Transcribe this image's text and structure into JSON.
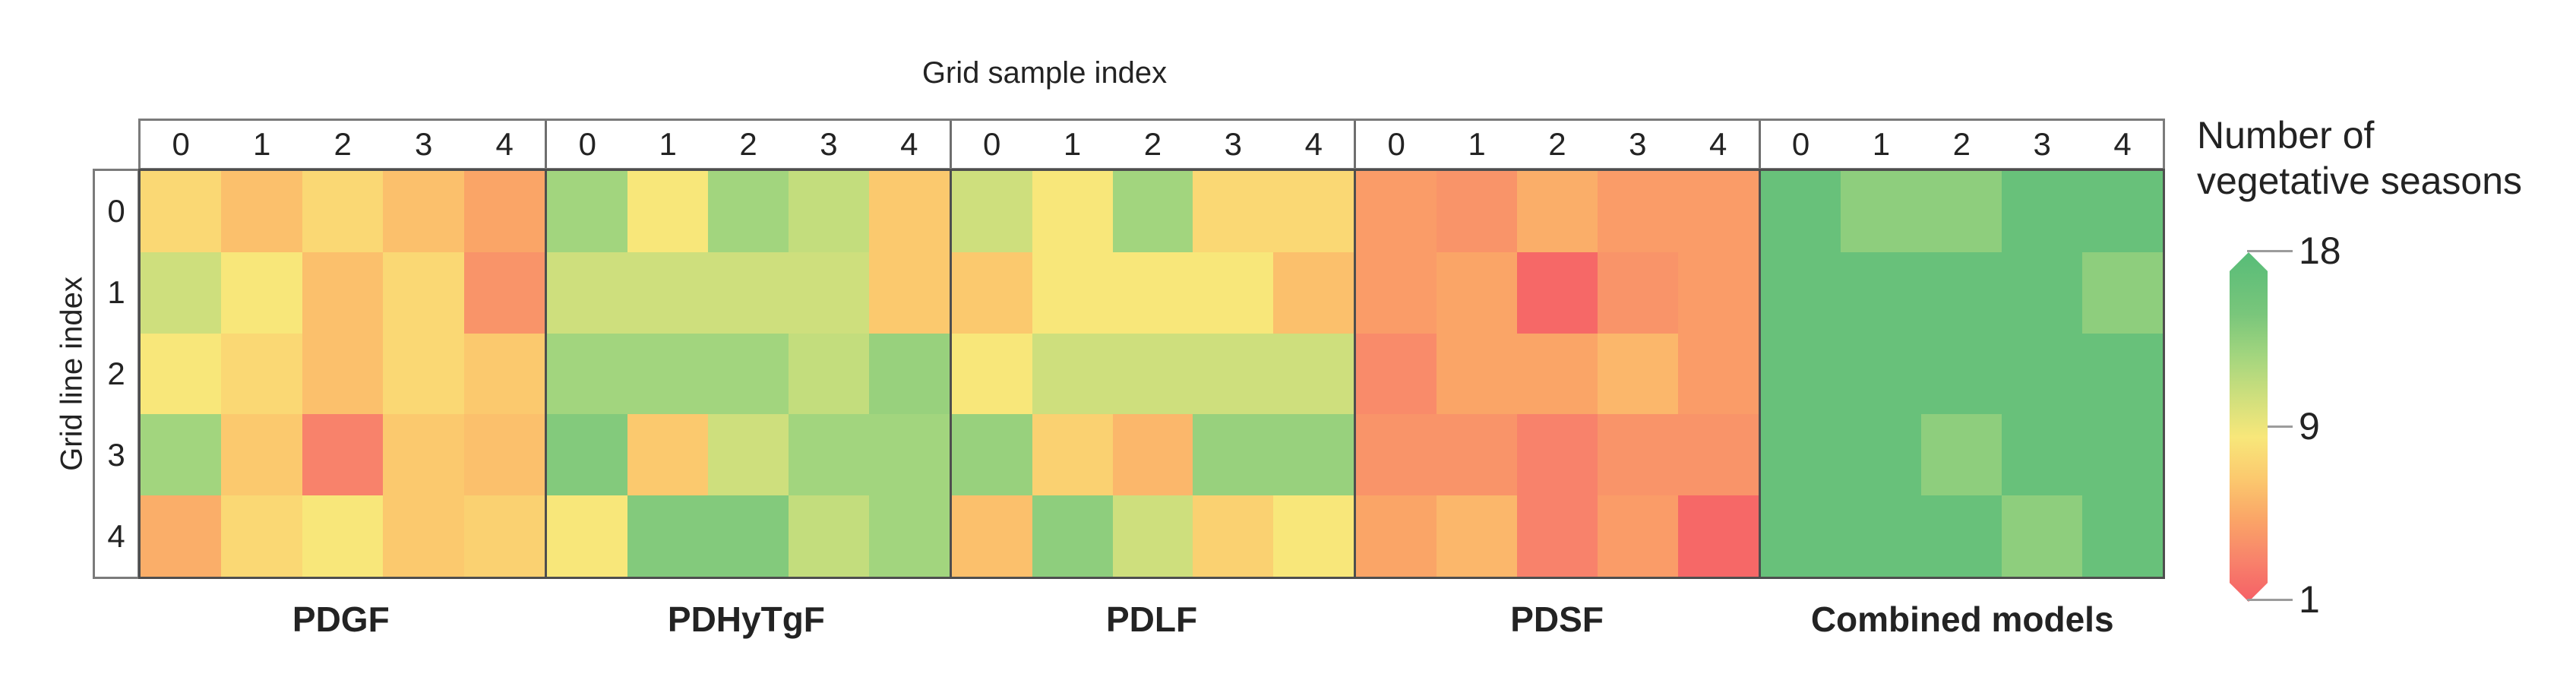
{
  "title": "Grid sample index",
  "y_axis_label": "Grid line index",
  "legend": {
    "title_lines": [
      "Number of",
      "vegetative seasons"
    ],
    "tick_labels": [
      "18",
      "9",
      "1"
    ]
  },
  "colors": {
    "background": "#ffffff",
    "panel_border": "#4e4e4e",
    "strip_border": "#7b7b7b",
    "tick_line": "#9c9c9c",
    "text": "#232323"
  },
  "chart_data": {
    "type": "heatmap",
    "title": "Grid sample index",
    "xlabel": "Grid sample index",
    "ylabel": "Grid line index",
    "value_label": "Number of vegetative seasons",
    "col_labels": [
      "0",
      "1",
      "2",
      "3",
      "4"
    ],
    "row_labels": [
      "0",
      "1",
      "2",
      "3",
      "4"
    ],
    "vmin": 1,
    "vmax": 18,
    "legend_ticks": [
      18,
      9,
      1
    ],
    "legend_position": "right",
    "colormap": {
      "anchors": [
        [
          1,
          "#f55f66"
        ],
        [
          3,
          "#f8826b"
        ],
        [
          5,
          "#faa567"
        ],
        [
          7,
          "#fbc96e"
        ],
        [
          9,
          "#f8e77a"
        ],
        [
          11,
          "#cedf7d"
        ],
        [
          13,
          "#a2d57e"
        ],
        [
          15,
          "#79c67b"
        ],
        [
          18,
          "#57bc78"
        ]
      ]
    },
    "panels": [
      {
        "name": "PDGF",
        "values": [
          [
            8,
            6.5,
            8,
            6.5,
            5
          ],
          [
            11,
            9,
            6.5,
            8,
            4
          ],
          [
            9,
            8,
            6.5,
            8,
            7
          ],
          [
            13,
            7,
            3,
            7,
            6.5
          ],
          [
            5.5,
            8,
            9,
            7,
            7.5
          ]
        ]
      },
      {
        "name": "PDHyTgF",
        "values": [
          [
            13,
            9,
            13,
            11.5,
            7
          ],
          [
            11,
            11,
            11,
            11,
            7
          ],
          [
            13,
            13,
            13,
            11.5,
            13.5
          ],
          [
            14.5,
            7,
            11,
            13,
            13
          ],
          [
            9,
            14.5,
            14.5,
            11.5,
            13
          ]
        ]
      },
      {
        "name": "PDLF",
        "values": [
          [
            11,
            9,
            13,
            8,
            8
          ],
          [
            7,
            9,
            9,
            9,
            6.5
          ],
          [
            9,
            11,
            11,
            11,
            11
          ],
          [
            13.5,
            7.5,
            6,
            13.5,
            13.5
          ],
          [
            6.5,
            14,
            11,
            7.5,
            9
          ]
        ]
      },
      {
        "name": "PDSF",
        "values": [
          [
            4.5,
            4,
            5.5,
            4.5,
            4.5
          ],
          [
            4.5,
            5,
            1.5,
            4,
            4.5
          ],
          [
            3.5,
            5,
            5,
            6,
            4.5
          ],
          [
            4,
            4,
            3,
            4,
            4
          ],
          [
            5,
            6,
            3,
            4.5,
            1.5
          ]
        ]
      },
      {
        "name": "Combined models",
        "values": [
          [
            16.5,
            14,
            14,
            16.5,
            16.5
          ],
          [
            16.5,
            16.5,
            16.5,
            16.5,
            14
          ],
          [
            16.5,
            16.5,
            16.5,
            16.5,
            16.5
          ],
          [
            16.5,
            16.5,
            14,
            16.5,
            16.5
          ],
          [
            16.5,
            16.5,
            16.5,
            14,
            16.5
          ]
        ]
      }
    ]
  }
}
